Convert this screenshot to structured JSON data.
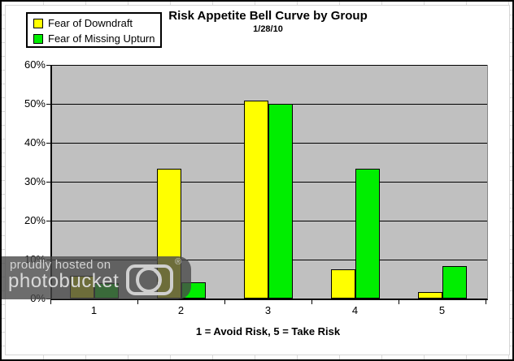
{
  "chart_data": {
    "type": "bar",
    "title": "Risk Appetite Bell Curve by Group",
    "subtitle": "1/28/10",
    "categories": [
      "1",
      "2",
      "3",
      "4",
      "5"
    ],
    "series": [
      {
        "name": "Fear of Downdraft",
        "color": "#FFFF00",
        "values": [
          5.8,
          33.3,
          50.8,
          7.5,
          1.6
        ]
      },
      {
        "name": "Fear of Missing Upturn",
        "color": "#00EE00",
        "values": [
          4.0,
          4.2,
          50.0,
          33.3,
          8.4
        ]
      }
    ],
    "xlabel": "1 = Avoid Risk, 5 = Take Risk",
    "ylabel": "",
    "ylim": [
      0,
      60
    ],
    "ytick_step": 10,
    "ytick_labels": [
      "0%",
      "10%",
      "20%",
      "30%",
      "40%",
      "50%",
      "60%"
    ],
    "grid": true,
    "legend_position": "top-left",
    "plot_bg_color": "#C0C0C0",
    "bar_border_color": "#000000"
  },
  "watermark": {
    "line1": "proudly hosted on",
    "line2": "photobucket",
    "registered_symbol": "®",
    "camera_icon": "camera-icon"
  }
}
